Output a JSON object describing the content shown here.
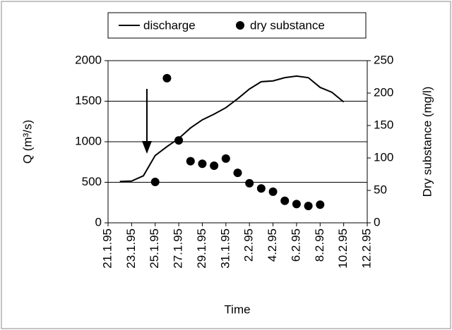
{
  "chart_data": {
    "type": "combo",
    "x_label": "Time",
    "y_label": "Q (m³/s)",
    "y2_label": "Dry substance (mg/l)",
    "xlim": [
      "21.1.95",
      "12.2.95"
    ],
    "xticks": [
      "21.1.95",
      "23.1.95",
      "25.1.95",
      "27.1.95",
      "29.1.95",
      "31.1.95",
      "2.2.95",
      "4.2.95",
      "6.2.95",
      "8.2.95",
      "10.2.95",
      "12.2.95"
    ],
    "ylim": [
      0,
      2000
    ],
    "yticks": [
      0,
      500,
      1000,
      1500,
      2000
    ],
    "y2lim": [
      0,
      250
    ],
    "y2ticks": [
      0,
      50,
      100,
      150,
      200,
      250
    ],
    "grid": true,
    "legend": "top",
    "series": [
      {
        "name": "discharge",
        "type": "line",
        "color": "#000000",
        "x": [
          "22.1.95",
          "23.1.95",
          "24.1.95",
          "25.1.95",
          "26.1.95",
          "27.1.95",
          "28.1.95",
          "29.1.95",
          "30.1.95",
          "31.1.95",
          "1.2.95",
          "2.2.95",
          "3.2.95",
          "4.2.95",
          "5.2.95",
          "6.2.95",
          "7.2.95",
          "8.2.95",
          "9.2.95",
          "10.2.95"
        ],
        "values": [
          510,
          515,
          580,
          830,
          940,
          1040,
          1170,
          1270,
          1340,
          1420,
          1530,
          1650,
          1740,
          1750,
          1790,
          1810,
          1790,
          1670,
          1610,
          1490
        ]
      },
      {
        "name": "dry substance",
        "type": "scatter",
        "color": "#000000",
        "axis": "y2",
        "x": [
          "25.1.95",
          "26.1.95",
          "27.1.95",
          "28.1.95",
          "29.1.95",
          "30.1.95",
          "31.1.95",
          "1.2.95",
          "2.2.95",
          "3.2.95",
          "4.2.95",
          "5.2.95",
          "6.2.95",
          "7.2.95",
          "8.2.95"
        ],
        "values": [
          63,
          223,
          127,
          95,
          91,
          88,
          99,
          77,
          61,
          53,
          48,
          34,
          29,
          26,
          28
        ]
      }
    ]
  }
}
